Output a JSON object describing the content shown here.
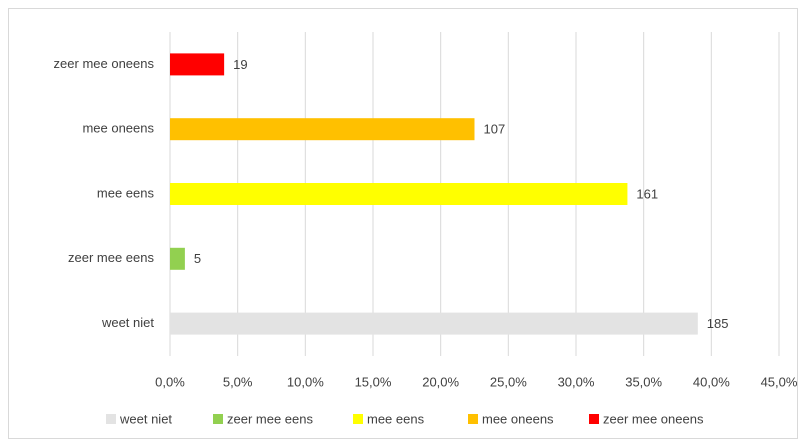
{
  "chart_data": {
    "type": "barh",
    "categories": [
      "weet niet",
      "zeer mee eens",
      "mee eens",
      "mee oneens",
      "zeer mee oneens"
    ],
    "values": [
      39.0,
      1.1,
      33.8,
      22.5,
      4.0
    ],
    "value_labels": [
      "185",
      "5",
      "161",
      "107",
      "19"
    ],
    "colors": [
      "#e3e3e3",
      "#92d050",
      "#ffff00",
      "#ffc000",
      "#ff0000"
    ],
    "xlim": [
      0,
      45
    ],
    "xticks": [
      {
        "value": 0,
        "label": "0,0%"
      },
      {
        "value": 5,
        "label": "5,0%"
      },
      {
        "value": 10,
        "label": "10,0%"
      },
      {
        "value": 15,
        "label": "15,0%"
      },
      {
        "value": 20,
        "label": "20,0%"
      },
      {
        "value": 25,
        "label": "25,0%"
      },
      {
        "value": 30,
        "label": "30,0%"
      },
      {
        "value": 35,
        "label": "35,0%"
      },
      {
        "value": 40,
        "label": "40,0%"
      },
      {
        "value": 45,
        "label": "45,0%"
      }
    ],
    "grid": true,
    "legend": "bottom"
  }
}
